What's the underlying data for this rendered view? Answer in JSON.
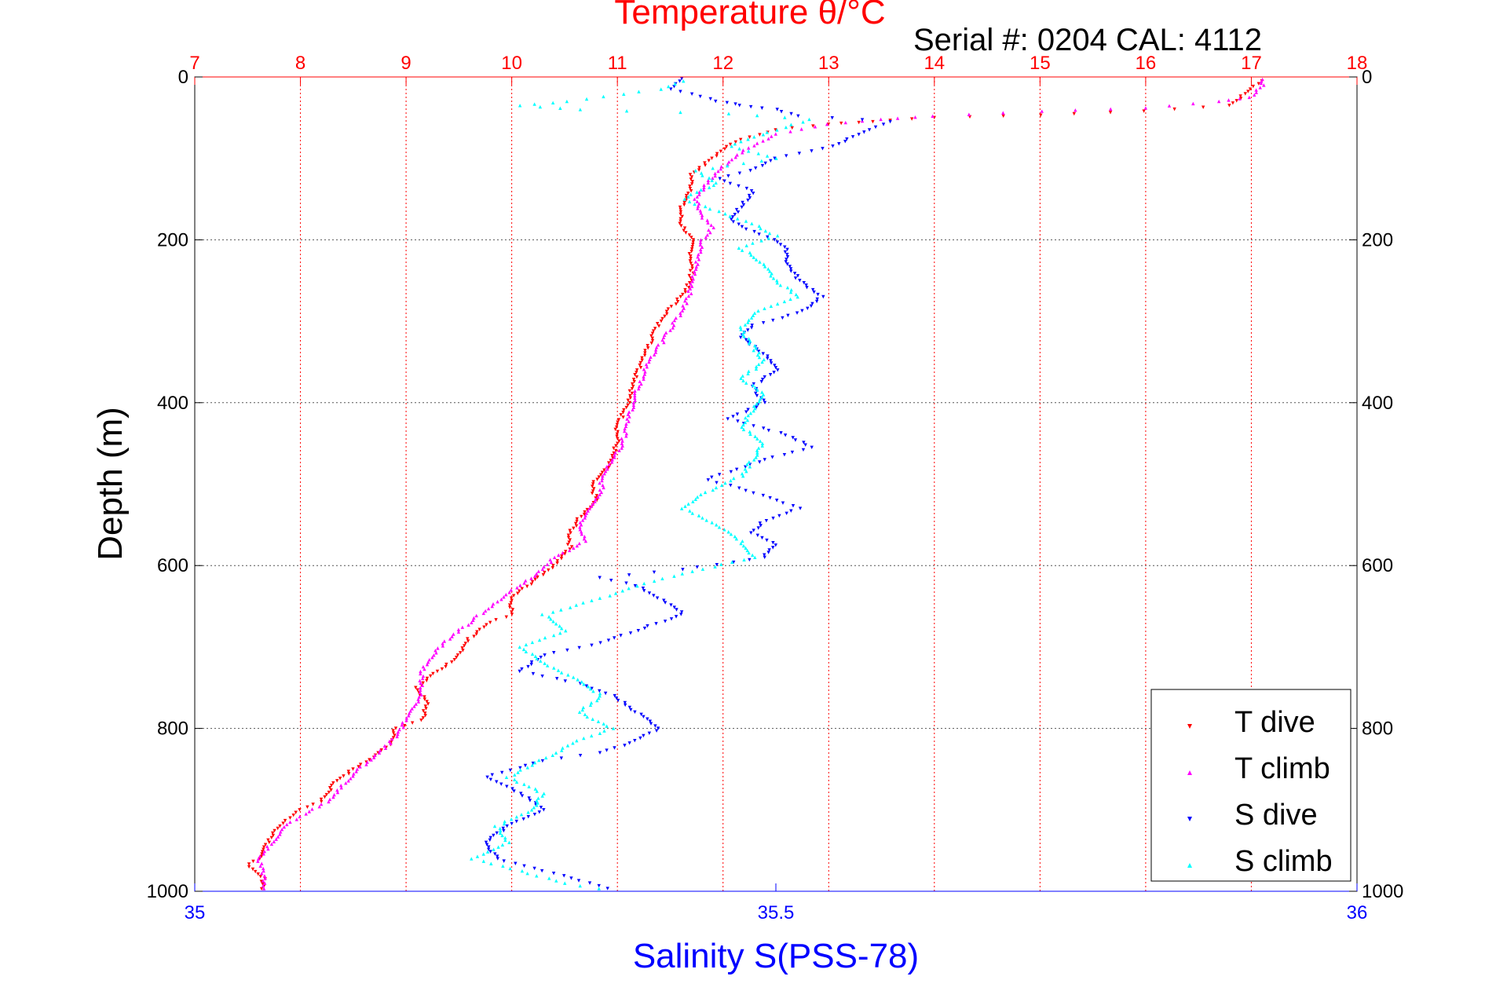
{
  "chart_data": {
    "type": "scatter",
    "title": "Temperature θ/°C",
    "subtitle": "Serial #: 0204  CAL: 4112",
    "xlabel_top": "Temperature θ/°C",
    "xlabel_bottom": "Salinity S(PSS-78)",
    "ylabel": "Depth (m)",
    "x_top": {
      "range": [
        7,
        18
      ],
      "ticks": [
        "7",
        "8",
        "9",
        "10",
        "11",
        "12",
        "13",
        "14",
        "15",
        "16",
        "17",
        "18"
      ],
      "color": "#ff0000",
      "grid": true
    },
    "x_bottom": {
      "range": [
        35,
        36
      ],
      "ticks": [
        "35",
        "35.5",
        "36"
      ],
      "color": "#0000ff"
    },
    "y": {
      "range": [
        0,
        1000
      ],
      "inverted": true,
      "ticks": [
        "0",
        "200",
        "400",
        "600",
        "800",
        "1000"
      ],
      "grid": true
    },
    "legend": {
      "placement": "bottom-right",
      "entries": [
        "T dive",
        "T climb",
        "S dive",
        "S climb"
      ]
    },
    "series": [
      {
        "name": "T dive",
        "axis": "top",
        "color": "#ff0000",
        "marker": "triangle-down",
        "points": [
          [
            17.1,
            5
          ],
          [
            17.0,
            15
          ],
          [
            16.8,
            35
          ],
          [
            16.0,
            42
          ],
          [
            15.0,
            47
          ],
          [
            14.0,
            50
          ],
          [
            13.4,
            55
          ],
          [
            13.0,
            58
          ],
          [
            12.5,
            65
          ],
          [
            12.1,
            80
          ],
          [
            11.9,
            100
          ],
          [
            11.7,
            120
          ],
          [
            11.7,
            140
          ],
          [
            11.6,
            160
          ],
          [
            11.6,
            180
          ],
          [
            11.7,
            200
          ],
          [
            11.7,
            220
          ],
          [
            11.7,
            250
          ],
          [
            11.6,
            270
          ],
          [
            11.4,
            300
          ],
          [
            11.3,
            330
          ],
          [
            11.2,
            360
          ],
          [
            11.15,
            380
          ],
          [
            11.1,
            400
          ],
          [
            11.0,
            430
          ],
          [
            11.0,
            450
          ],
          [
            10.9,
            480
          ],
          [
            10.75,
            500
          ],
          [
            10.8,
            520
          ],
          [
            10.65,
            540
          ],
          [
            10.55,
            560
          ],
          [
            10.55,
            580
          ],
          [
            10.4,
            600
          ],
          [
            10.2,
            620
          ],
          [
            10.0,
            640
          ],
          [
            10.0,
            660
          ],
          [
            9.8,
            670
          ],
          [
            9.6,
            690
          ],
          [
            9.5,
            710
          ],
          [
            9.3,
            730
          ],
          [
            9.1,
            750
          ],
          [
            9.2,
            770
          ],
          [
            9.15,
            790
          ],
          [
            8.9,
            800
          ],
          [
            8.85,
            820
          ],
          [
            8.75,
            830
          ],
          [
            8.5,
            850
          ],
          [
            8.3,
            870
          ],
          [
            8.2,
            890
          ],
          [
            8.0,
            900
          ],
          [
            7.9,
            910
          ],
          [
            7.8,
            920
          ],
          [
            7.7,
            940
          ],
          [
            7.6,
            960
          ],
          [
            7.5,
            970
          ],
          [
            7.65,
            985
          ],
          [
            7.65,
            1000
          ]
        ]
      },
      {
        "name": "T climb",
        "axis": "top",
        "color": "#ff00ff",
        "marker": "triangle-up",
        "points": [
          [
            17.1,
            3
          ],
          [
            17.1,
            10
          ],
          [
            17.0,
            25
          ],
          [
            16.7,
            30
          ],
          [
            16.0,
            38
          ],
          [
            15.0,
            42
          ],
          [
            14.0,
            48
          ],
          [
            13.5,
            52
          ],
          [
            13.0,
            58
          ],
          [
            12.5,
            70
          ],
          [
            12.2,
            90
          ],
          [
            12.0,
            110
          ],
          [
            11.85,
            130
          ],
          [
            11.75,
            150
          ],
          [
            11.8,
            170
          ],
          [
            11.9,
            185
          ],
          [
            11.8,
            200
          ],
          [
            11.75,
            230
          ],
          [
            11.7,
            260
          ],
          [
            11.6,
            290
          ],
          [
            11.45,
            320
          ],
          [
            11.3,
            350
          ],
          [
            11.2,
            380
          ],
          [
            11.15,
            400
          ],
          [
            11.1,
            420
          ],
          [
            11.05,
            450
          ],
          [
            10.95,
            470
          ],
          [
            10.85,
            490
          ],
          [
            10.85,
            510
          ],
          [
            10.75,
            530
          ],
          [
            10.65,
            550
          ],
          [
            10.7,
            570
          ],
          [
            10.4,
            590
          ],
          [
            10.25,
            610
          ],
          [
            10.0,
            630
          ],
          [
            9.8,
            650
          ],
          [
            9.6,
            670
          ],
          [
            9.4,
            690
          ],
          [
            9.25,
            710
          ],
          [
            9.15,
            730
          ],
          [
            9.15,
            750
          ],
          [
            9.1,
            770
          ],
          [
            9.0,
            790
          ],
          [
            8.9,
            810
          ],
          [
            8.75,
            830
          ],
          [
            8.55,
            850
          ],
          [
            8.4,
            870
          ],
          [
            8.25,
            890
          ],
          [
            8.05,
            905
          ],
          [
            7.9,
            915
          ],
          [
            7.8,
            930
          ],
          [
            7.7,
            945
          ],
          [
            7.6,
            960
          ],
          [
            7.65,
            975
          ],
          [
            7.65,
            990
          ],
          [
            7.65,
            1000
          ]
        ]
      },
      {
        "name": "S dive",
        "axis": "bottom",
        "color": "#0000ff",
        "marker": "triangle-down",
        "points": [
          [
            35.42,
            2
          ],
          [
            35.41,
            15
          ],
          [
            35.45,
            30
          ],
          [
            35.47,
            35
          ],
          [
            35.5,
            40
          ],
          [
            35.52,
            48
          ],
          [
            35.6,
            55
          ],
          [
            35.58,
            65
          ],
          [
            35.55,
            85
          ],
          [
            35.5,
            100
          ],
          [
            35.48,
            115
          ],
          [
            35.45,
            125
          ],
          [
            35.48,
            140
          ],
          [
            35.47,
            160
          ],
          [
            35.46,
            175
          ],
          [
            35.48,
            190
          ],
          [
            35.5,
            200
          ],
          [
            35.51,
            215
          ],
          [
            35.51,
            230
          ],
          [
            35.52,
            250
          ],
          [
            35.54,
            270
          ],
          [
            35.52,
            290
          ],
          [
            35.48,
            305
          ],
          [
            35.47,
            320
          ],
          [
            35.49,
            340
          ],
          [
            35.5,
            360
          ],
          [
            35.48,
            380
          ],
          [
            35.49,
            400
          ],
          [
            35.46,
            420
          ],
          [
            35.51,
            440
          ],
          [
            35.53,
            455
          ],
          [
            35.49,
            470
          ],
          [
            35.46,
            485
          ],
          [
            35.44,
            495
          ],
          [
            35.47,
            505
          ],
          [
            35.5,
            520
          ],
          [
            35.52,
            530
          ],
          [
            35.49,
            545
          ],
          [
            35.48,
            560
          ],
          [
            35.5,
            575
          ],
          [
            35.49,
            590
          ],
          [
            35.42,
            605
          ],
          [
            35.35,
            615
          ],
          [
            35.38,
            625
          ],
          [
            35.4,
            640
          ],
          [
            35.42,
            660
          ],
          [
            35.38,
            680
          ],
          [
            35.35,
            695
          ],
          [
            35.3,
            710
          ],
          [
            35.28,
            730
          ],
          [
            35.33,
            745
          ],
          [
            35.36,
            760
          ],
          [
            35.38,
            780
          ],
          [
            35.4,
            800
          ],
          [
            35.38,
            815
          ],
          [
            35.35,
            830
          ],
          [
            35.3,
            840
          ],
          [
            35.25,
            860
          ],
          [
            35.28,
            880
          ],
          [
            35.3,
            900
          ],
          [
            35.27,
            920
          ],
          [
            35.25,
            940
          ],
          [
            35.26,
            960
          ],
          [
            35.3,
            975
          ],
          [
            35.34,
            990
          ],
          [
            35.36,
            1000
          ]
        ]
      },
      {
        "name": "S climb",
        "axis": "bottom",
        "color": "#00ffff",
        "marker": "triangle-up",
        "points": [
          [
            35.42,
            5
          ],
          [
            35.4,
            15
          ],
          [
            35.32,
            30
          ],
          [
            35.28,
            35
          ],
          [
            35.33,
            40
          ],
          [
            35.46,
            45
          ],
          [
            35.53,
            52
          ],
          [
            35.5,
            65
          ],
          [
            35.46,
            85
          ],
          [
            35.5,
            100
          ],
          [
            35.43,
            115
          ],
          [
            35.45,
            130
          ],
          [
            35.42,
            150
          ],
          [
            35.45,
            165
          ],
          [
            35.48,
            180
          ],
          [
            35.5,
            195
          ],
          [
            35.47,
            210
          ],
          [
            35.49,
            230
          ],
          [
            35.5,
            250
          ],
          [
            35.52,
            270
          ],
          [
            35.48,
            290
          ],
          [
            35.47,
            310
          ],
          [
            35.48,
            330
          ],
          [
            35.49,
            350
          ],
          [
            35.47,
            370
          ],
          [
            35.49,
            390
          ],
          [
            35.48,
            410
          ],
          [
            35.47,
            430
          ],
          [
            35.49,
            450
          ],
          [
            35.48,
            470
          ],
          [
            35.47,
            490
          ],
          [
            35.44,
            510
          ],
          [
            35.42,
            530
          ],
          [
            35.45,
            550
          ],
          [
            35.47,
            570
          ],
          [
            35.48,
            590
          ],
          [
            35.42,
            610
          ],
          [
            35.38,
            625
          ],
          [
            35.35,
            640
          ],
          [
            35.3,
            660
          ],
          [
            35.32,
            680
          ],
          [
            35.28,
            700
          ],
          [
            35.3,
            720
          ],
          [
            35.33,
            740
          ],
          [
            35.35,
            760
          ],
          [
            35.33,
            780
          ],
          [
            35.36,
            800
          ],
          [
            35.33,
            815
          ],
          [
            35.31,
            830
          ],
          [
            35.29,
            845
          ],
          [
            35.27,
            860
          ],
          [
            35.3,
            880
          ],
          [
            35.29,
            900
          ],
          [
            35.26,
            920
          ],
          [
            35.27,
            940
          ],
          [
            35.24,
            960
          ],
          [
            35.28,
            975
          ],
          [
            35.32,
            990
          ],
          [
            35.36,
            1000
          ]
        ]
      }
    ]
  }
}
